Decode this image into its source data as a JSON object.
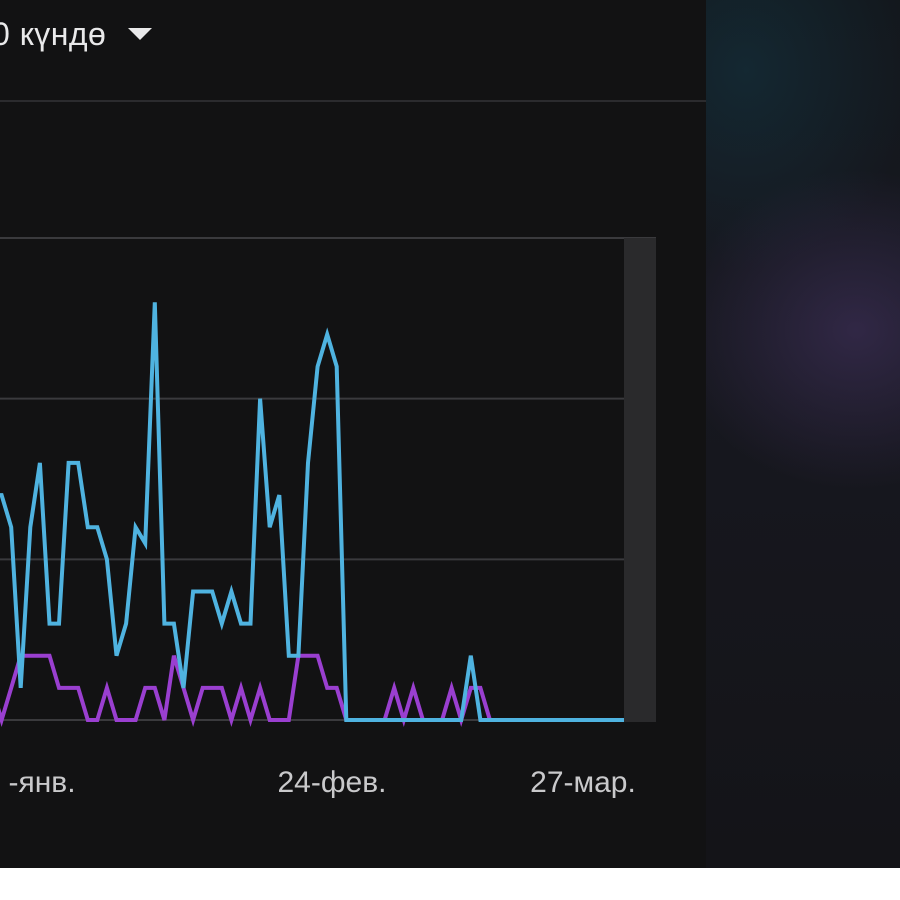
{
  "header": {
    "period_label": "0 күндө",
    "dropdown_icon": "caret-down-icon"
  },
  "colors": {
    "background": "#121213",
    "series_blue": "#4fb3e0",
    "series_purple": "#9a3fd0",
    "grid": "#3a3a3d",
    "tick_text": "#c9c9cb"
  },
  "chart_data": {
    "type": "line",
    "xlabel": "",
    "ylabel": "",
    "x_ticks": [
      "-янв.",
      "24-фев.",
      "27-мар."
    ],
    "grid": true,
    "ylim": [
      0,
      3
    ],
    "series": [
      {
        "values": [
          1.4,
          1.4,
          1.2,
          0.2,
          1.2,
          1.6,
          0.6,
          0.6,
          1.6,
          1.6,
          1.2,
          1.2,
          1.0,
          0.4,
          0.6,
          1.2,
          1.1,
          2.6,
          0.6,
          0.6,
          0.2,
          0.8,
          0.8,
          0.8,
          0.6,
          0.8,
          0.6,
          0.6,
          2.0,
          1.2,
          1.4,
          0.4,
          0.4,
          1.6,
          2.2,
          2.4,
          2.2,
          0,
          0,
          0,
          0,
          0,
          0,
          0,
          0,
          0,
          0,
          0,
          0,
          0,
          0.4,
          0,
          0,
          0,
          0,
          0,
          0,
          0,
          0,
          0,
          0,
          0,
          0,
          0,
          0,
          0,
          0
        ],
        "color": "#4fb3e0"
      },
      {
        "values": [
          0.2,
          0,
          0.2,
          0.4,
          0.4,
          0.4,
          0.4,
          0.2,
          0.2,
          0.2,
          0,
          0,
          0.2,
          0,
          0,
          0,
          0.2,
          0.2,
          0,
          0.4,
          0.2,
          0,
          0.2,
          0.2,
          0.2,
          0,
          0.2,
          0,
          0.2,
          0,
          0,
          0,
          0.4,
          0.4,
          0.4,
          0.2,
          0.2,
          0,
          0,
          0,
          0,
          0,
          0.2,
          0,
          0.2,
          0,
          0,
          0,
          0.2,
          0,
          0.2,
          0.2,
          0,
          0,
          0,
          0,
          0,
          0,
          0,
          0,
          0,
          0,
          0,
          0,
          0,
          0,
          0
        ],
        "color": "#9a3fd0"
      }
    ]
  }
}
